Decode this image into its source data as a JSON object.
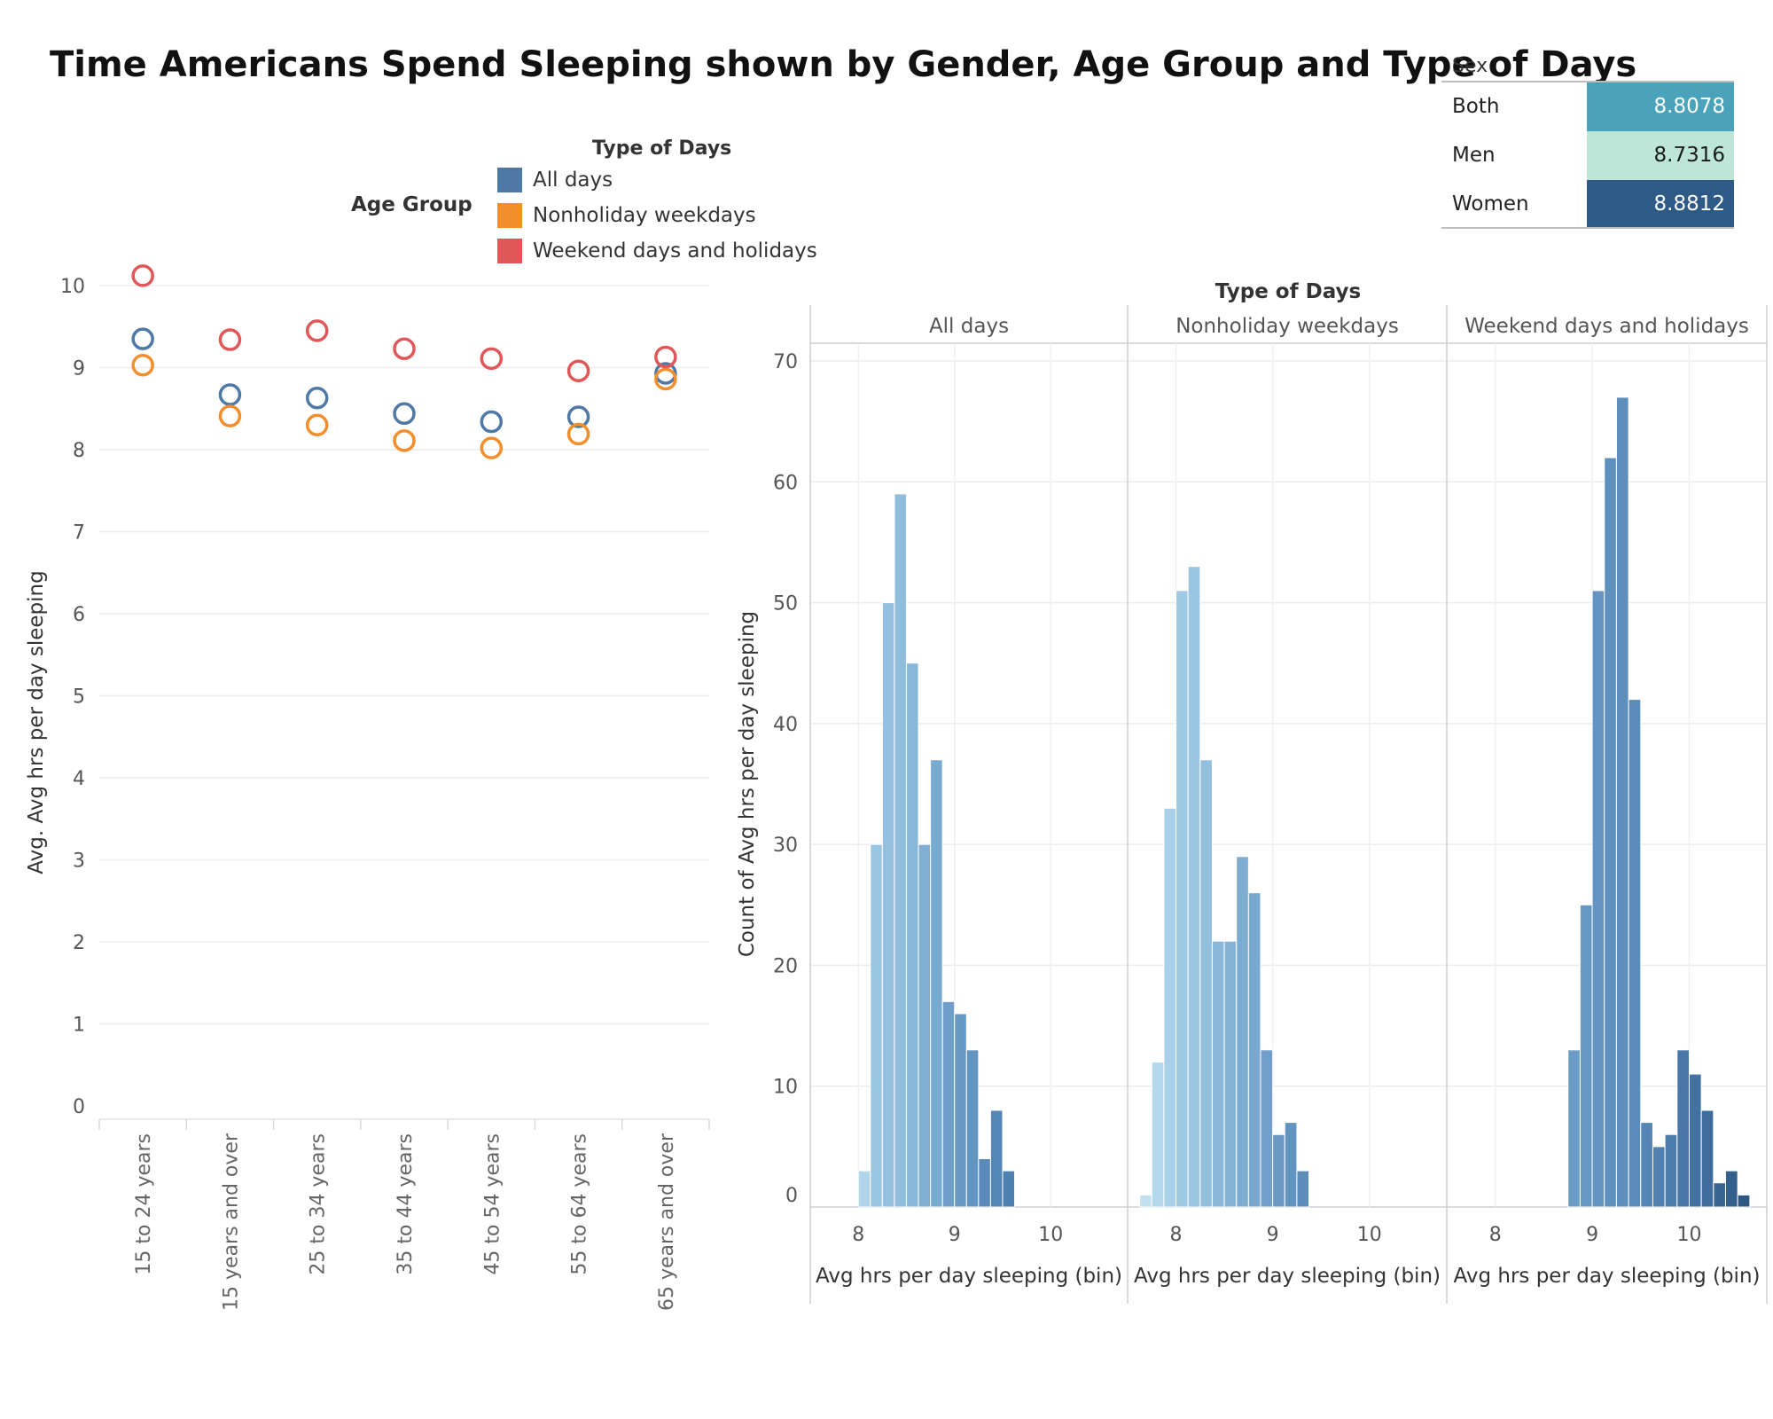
{
  "title": "Time Americans Spend Sleeping shown by Gender, Age Group and Type of Days",
  "sex_table": {
    "header": "Sex",
    "rows": [
      {
        "label": "Both",
        "value": "8.8078",
        "color": "#4AA3BA",
        "text_color": "#ffffff"
      },
      {
        "label": "Men",
        "value": "8.7316",
        "color": "#BDE6D9",
        "text_color": "#1a1a1a"
      },
      {
        "label": "Women",
        "value": "8.8812",
        "color": "#2D5A87",
        "text_color": "#ffffff"
      }
    ]
  },
  "legend": {
    "title": "Type of Days",
    "items": [
      {
        "label": "All days",
        "color": "#4E79A7"
      },
      {
        "label": "Nonholiday weekdays",
        "color": "#F28E2B"
      },
      {
        "label": "Weekend days and holidays",
        "color": "#E15759"
      }
    ]
  },
  "chart_data": [
    {
      "type": "scatter",
      "title": "Age Group",
      "xlabel": "",
      "ylabel": "Avg. Avg hrs per day sleeping",
      "ylim": [
        0,
        10
      ],
      "yticks": [
        0,
        1,
        2,
        3,
        4,
        5,
        6,
        7,
        8,
        9,
        10
      ],
      "grid": true,
      "categories": [
        "15 to 24 years",
        "15 years and over",
        "25 to 34 years",
        "35 to 44 years",
        "45 to 54 years",
        "55 to 64 years",
        "65 years and over"
      ],
      "series": [
        {
          "name": "All days",
          "color": "#4E79A7",
          "values": [
            9.35,
            8.67,
            8.63,
            8.44,
            8.34,
            8.4,
            8.93
          ]
        },
        {
          "name": "Nonholiday weekdays",
          "color": "#F28E2B",
          "values": [
            9.03,
            8.41,
            8.3,
            8.11,
            8.02,
            8.19,
            8.86
          ]
        },
        {
          "name": "Weekend days and holidays",
          "color": "#E15759",
          "values": [
            10.12,
            9.34,
            9.45,
            9.23,
            9.11,
            8.96,
            9.13
          ]
        }
      ]
    },
    {
      "type": "bar",
      "title": "Type of Days",
      "ylabel": "Count of Avg hrs per day sleeping",
      "ylim": [
        0,
        70
      ],
      "yticks": [
        0,
        10,
        20,
        30,
        40,
        50,
        60,
        70
      ],
      "xlim": [
        7.5,
        10.8
      ],
      "xticks": [
        8,
        9,
        10
      ],
      "bin_width": 0.125,
      "grid": true,
      "panels": [
        {
          "name": "All days",
          "xlabel": "Avg hrs per day sleeping (bin)",
          "bins": [
            {
              "x": 8.0,
              "count": 3,
              "color": "#B0D4EA"
            },
            {
              "x": 8.125,
              "count": 30,
              "color": "#9AC6E2"
            },
            {
              "x": 8.25,
              "count": 50,
              "color": "#95C1DF"
            },
            {
              "x": 8.375,
              "count": 59,
              "color": "#90BDDC"
            },
            {
              "x": 8.5,
              "count": 45,
              "color": "#89B7D8"
            },
            {
              "x": 8.625,
              "count": 30,
              "color": "#80AFD3"
            },
            {
              "x": 8.75,
              "count": 37,
              "color": "#79AACF"
            },
            {
              "x": 8.875,
              "count": 17,
              "color": "#6F9FC8"
            },
            {
              "x": 9.0,
              "count": 16,
              "color": "#6899C4"
            },
            {
              "x": 9.125,
              "count": 13,
              "color": "#6494C0"
            },
            {
              "x": 9.25,
              "count": 4,
              "color": "#5A8ABA"
            },
            {
              "x": 9.375,
              "count": 8,
              "color": "#5385B5"
            },
            {
              "x": 9.5,
              "count": 3,
              "color": "#4F80B2"
            }
          ]
        },
        {
          "name": "Nonholiday weekdays",
          "xlabel": "Avg hrs per day sleeping (bin)",
          "bins": [
            {
              "x": 7.625,
              "count": 1,
              "color": "#C3E0F0"
            },
            {
              "x": 7.75,
              "count": 12,
              "color": "#B4D8EC"
            },
            {
              "x": 7.875,
              "count": 33,
              "color": "#A8D0E8"
            },
            {
              "x": 8.0,
              "count": 51,
              "color": "#A0CAE4"
            },
            {
              "x": 8.125,
              "count": 53,
              "color": "#9BC6E2"
            },
            {
              "x": 8.25,
              "count": 37,
              "color": "#92BFDE"
            },
            {
              "x": 8.375,
              "count": 22,
              "color": "#89B7D8"
            },
            {
              "x": 8.5,
              "count": 22,
              "color": "#84B3D6"
            },
            {
              "x": 8.625,
              "count": 29,
              "color": "#7EADD2"
            },
            {
              "x": 8.75,
              "count": 26,
              "color": "#79A9CF"
            },
            {
              "x": 8.875,
              "count": 13,
              "color": "#719FC9"
            },
            {
              "x": 9.0,
              "count": 6,
              "color": "#6A99C4"
            },
            {
              "x": 9.125,
              "count": 7,
              "color": "#6393BF"
            },
            {
              "x": 9.25,
              "count": 3,
              "color": "#5C8DBB"
            }
          ]
        },
        {
          "name": "Weekend days and holidays",
          "xlabel": "Avg hrs per day sleeping (bin)",
          "bins": [
            {
              "x": 8.75,
              "count": 13,
              "color": "#6A9CC7"
            },
            {
              "x": 8.875,
              "count": 25,
              "color": "#6798C4"
            },
            {
              "x": 9.0,
              "count": 51,
              "color": "#6494C1"
            },
            {
              "x": 9.125,
              "count": 62,
              "color": "#6091BE"
            },
            {
              "x": 9.25,
              "count": 67,
              "color": "#5D8EBC"
            },
            {
              "x": 9.375,
              "count": 42,
              "color": "#5A8BB9"
            },
            {
              "x": 9.5,
              "count": 7,
              "color": "#5485B4"
            },
            {
              "x": 9.625,
              "count": 5,
              "color": "#5081B0"
            },
            {
              "x": 9.75,
              "count": 6,
              "color": "#4B7CAC"
            },
            {
              "x": 9.875,
              "count": 13,
              "color": "#4776A7"
            },
            {
              "x": 10.0,
              "count": 11,
              "color": "#4371A2"
            },
            {
              "x": 10.125,
              "count": 8,
              "color": "#3F6C9D"
            },
            {
              "x": 10.25,
              "count": 2,
              "color": "#396593"
            },
            {
              "x": 10.375,
              "count": 3,
              "color": "#355F8C"
            },
            {
              "x": 10.5,
              "count": 1,
              "color": "#2F5784"
            }
          ]
        }
      ]
    }
  ]
}
